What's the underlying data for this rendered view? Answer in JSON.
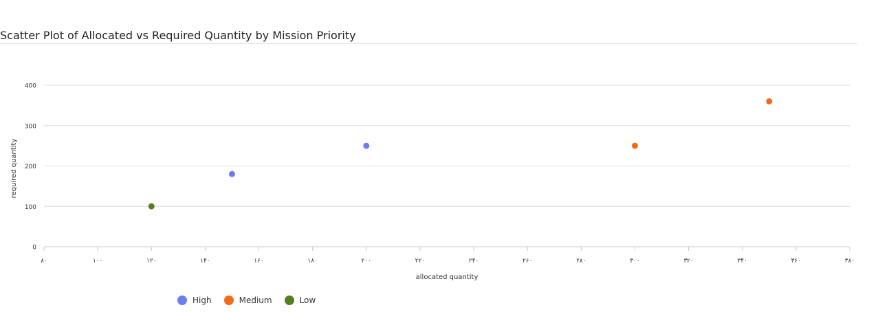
{
  "chart_data": {
    "type": "scatter",
    "title": "Scatter Plot of Allocated vs Required Quantity by Mission Priority",
    "xlabel": "allocated quantity",
    "ylabel": "required quantity",
    "xlim": [
      80,
      380
    ],
    "ylim": [
      0,
      400
    ],
    "x_ticks": [
      "۸۰",
      "۱۰۰",
      "۱۲۰",
      "۱۴۰",
      "۱۶۰",
      "۱۸۰",
      "۲۰۰",
      "۲۲۰",
      "۲۴۰",
      "۲۶۰",
      "۲۸۰",
      "۳۰۰",
      "۳۲۰",
      "۳۴۰",
      "۳۶۰",
      "۳۸۰"
    ],
    "y_ticks": [
      "0",
      "100",
      "200",
      "300",
      "400"
    ],
    "grid": "horizontal",
    "legend_position": "bottom-left",
    "series": [
      {
        "name": "High",
        "color": "#6b7ff0",
        "points": [
          {
            "x": 150,
            "y": 180
          },
          {
            "x": 200,
            "y": 250
          }
        ]
      },
      {
        "name": "Medium",
        "color": "#f26a1b",
        "points": [
          {
            "x": 300,
            "y": 250
          },
          {
            "x": 350,
            "y": 360
          }
        ]
      },
      {
        "name": "Low",
        "color": "#538022",
        "points": [
          {
            "x": 120,
            "y": 100
          }
        ]
      }
    ]
  }
}
